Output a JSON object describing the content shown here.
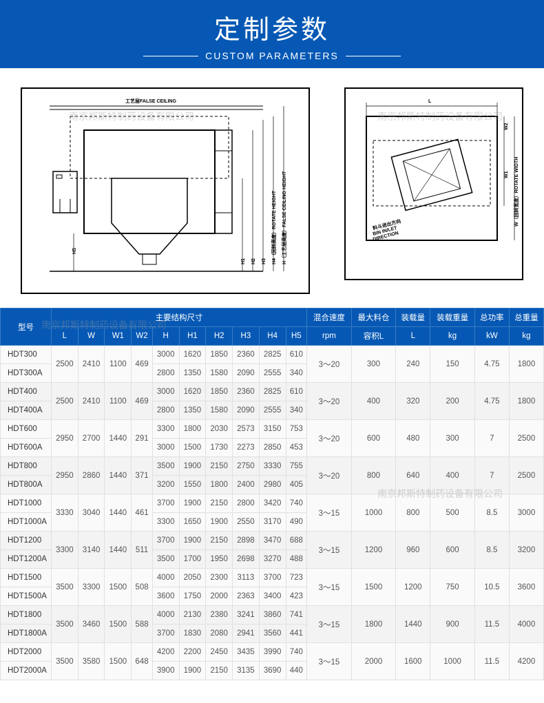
{
  "header": {
    "title_cn": "定制参数",
    "title_en": "CUSTOM PARAMETERS",
    "bg_color": "#0658b4"
  },
  "diagrams": {
    "left": {
      "label_top": "工艺层FALSE CEILING",
      "labels_v": [
        "H1",
        "H2",
        "H3",
        "H4（回转高度）ROTATE HEIGHT",
        "H（工艺层高度）FALSE CEILING HEIGHT"
      ],
      "label_h5": "H5"
    },
    "right": {
      "label_L": "L",
      "label_W": "W（回转宽度）ROTATE WIDTH",
      "label_W1": "W1",
      "label_W2": "W2",
      "label_bin": "料斗进出方向\nBIN IN/LET\nDIRECTION"
    }
  },
  "watermarks": {
    "text": "南京邦斯特制药设备有限公司"
  },
  "table": {
    "headers": {
      "model": "型号",
      "structure_group": "主要结构尺寸",
      "structure_cols": [
        "L",
        "W",
        "W1",
        "W2",
        "H",
        "H1",
        "H2",
        "H3",
        "H4",
        "H5"
      ],
      "mix_speed": "混合速度",
      "mix_speed_unit": "rpm",
      "max_bin": "最大料仓",
      "max_bin_unit": "容积L",
      "load_vol": "装载量",
      "load_vol_unit": "L",
      "load_weight": "装载重量",
      "load_weight_unit": "kg",
      "power": "总功率",
      "power_unit": "kW",
      "total_weight": "总重量",
      "total_weight_unit": "kg"
    },
    "groups": [
      {
        "shared": {
          "L": "2500",
          "W": "2410",
          "W1": "1100",
          "W2": "469",
          "speed": "3～20",
          "bin": "300",
          "loadL": "240",
          "loadKg": "150",
          "kw": "4.75",
          "totkg": "1800"
        },
        "rows": [
          {
            "model": "HDT300",
            "H": "3000",
            "H1": "1620",
            "H2": "1850",
            "H3": "2360",
            "H4": "2825",
            "H5": "610"
          },
          {
            "model": "HDT300A",
            "H": "2800",
            "H1": "1350",
            "H2": "1580",
            "H3": "2090",
            "H4": "2555",
            "H5": "340"
          }
        ]
      },
      {
        "shared": {
          "L": "2500",
          "W": "2410",
          "W1": "1100",
          "W2": "469",
          "speed": "3～20",
          "bin": "400",
          "loadL": "320",
          "loadKg": "200",
          "kw": "4.75",
          "totkg": "1800"
        },
        "rows": [
          {
            "model": "HDT400",
            "H": "3000",
            "H1": "1620",
            "H2": "1850",
            "H3": "2360",
            "H4": "2825",
            "H5": "610"
          },
          {
            "model": "HDT400A",
            "H": "2800",
            "H1": "1350",
            "H2": "1580",
            "H3": "2090",
            "H4": "2555",
            "H5": "340"
          }
        ]
      },
      {
        "shared": {
          "L": "2950",
          "W": "2700",
          "W1": "1440",
          "W2": "291",
          "speed": "3～20",
          "bin": "600",
          "loadL": "480",
          "loadKg": "300",
          "kw": "7",
          "totkg": "2500"
        },
        "rows": [
          {
            "model": "HDT600",
            "H": "3300",
            "H1": "1800",
            "H2": "2030",
            "H3": "2573",
            "H4": "3150",
            "H5": "753"
          },
          {
            "model": "HDT600A",
            "H": "3000",
            "H1": "1500",
            "H2": "1730",
            "H3": "2273",
            "H4": "2850",
            "H5": "453"
          }
        ]
      },
      {
        "shared": {
          "L": "2950",
          "W": "2860",
          "W1": "1440",
          "W2": "371",
          "speed": "3～20",
          "bin": "800",
          "loadL": "640",
          "loadKg": "400",
          "kw": "7",
          "totkg": "2500"
        },
        "rows": [
          {
            "model": "HDT800",
            "H": "3500",
            "H1": "1900",
            "H2": "2150",
            "H3": "2750",
            "H4": "3330",
            "H5": "755"
          },
          {
            "model": "HDT800A",
            "H": "3200",
            "H1": "1550",
            "H2": "1800",
            "H3": "2400",
            "H4": "2980",
            "H5": "405"
          }
        ]
      },
      {
        "shared": {
          "L": "3330",
          "W": "3040",
          "W1": "1440",
          "W2": "461",
          "speed": "3～15",
          "bin": "1000",
          "loadL": "800",
          "loadKg": "500",
          "kw": "8.5",
          "totkg": "3000"
        },
        "rows": [
          {
            "model": "HDT1000",
            "H": "3700",
            "H1": "1900",
            "H2": "2150",
            "H3": "2800",
            "H4": "3420",
            "H5": "740"
          },
          {
            "model": "HDT1000A",
            "H": "3300",
            "H1": "1650",
            "H2": "1900",
            "H3": "2550",
            "H4": "3170",
            "H5": "490"
          }
        ]
      },
      {
        "shared": {
          "L": "3300",
          "W": "3140",
          "W1": "1440",
          "W2": "511",
          "speed": "3～15",
          "bin": "1200",
          "loadL": "960",
          "loadKg": "600",
          "kw": "8.5",
          "totkg": "3200"
        },
        "rows": [
          {
            "model": "HDT1200",
            "H": "3700",
            "H1": "1900",
            "H2": "2150",
            "H3": "2898",
            "H4": "3470",
            "H5": "688"
          },
          {
            "model": "HDT1200A",
            "H": "3500",
            "H1": "1700",
            "H2": "1950",
            "H3": "2698",
            "H4": "3270",
            "H5": "488"
          }
        ]
      },
      {
        "shared": {
          "L": "3500",
          "W": "3300",
          "W1": "1500",
          "W2": "508",
          "speed": "3～15",
          "bin": "1500",
          "loadL": "1200",
          "loadKg": "750",
          "kw": "10.5",
          "totkg": "3600"
        },
        "rows": [
          {
            "model": "HDT1500",
            "H": "4000",
            "H1": "2050",
            "H2": "2300",
            "H3": "3113",
            "H4": "3700",
            "H5": "723"
          },
          {
            "model": "HDT1500A",
            "H": "3600",
            "H1": "1750",
            "H2": "2000",
            "H3": "2363",
            "H4": "3400",
            "H5": "423"
          }
        ]
      },
      {
        "shared": {
          "L": "3500",
          "W": "3460",
          "W1": "1500",
          "W2": "588",
          "speed": "3～15",
          "bin": "1800",
          "loadL": "1440",
          "loadKg": "900",
          "kw": "11.5",
          "totkg": "4000"
        },
        "rows": [
          {
            "model": "HDT1800",
            "H": "4000",
            "H1": "2130",
            "H2": "2380",
            "H3": "3241",
            "H4": "3860",
            "H5": "741"
          },
          {
            "model": "HDT1800A",
            "H": "3700",
            "H1": "1830",
            "H2": "2080",
            "H3": "2941",
            "H4": "3560",
            "H5": "441"
          }
        ]
      },
      {
        "shared": {
          "L": "3500",
          "W": "3580",
          "W1": "1500",
          "W2": "648",
          "speed": "3～15",
          "bin": "2000",
          "loadL": "1600",
          "loadKg": "1000",
          "kw": "11.5",
          "totkg": "4200"
        },
        "rows": [
          {
            "model": "HDT2000",
            "H": "4200",
            "H1": "2200",
            "H2": "2450",
            "H3": "3435",
            "H4": "3990",
            "H5": "740"
          },
          {
            "model": "HDT2000A",
            "H": "3900",
            "H1": "1900",
            "H2": "2150",
            "H3": "3135",
            "H4": "3690",
            "H5": "440"
          }
        ]
      }
    ]
  }
}
